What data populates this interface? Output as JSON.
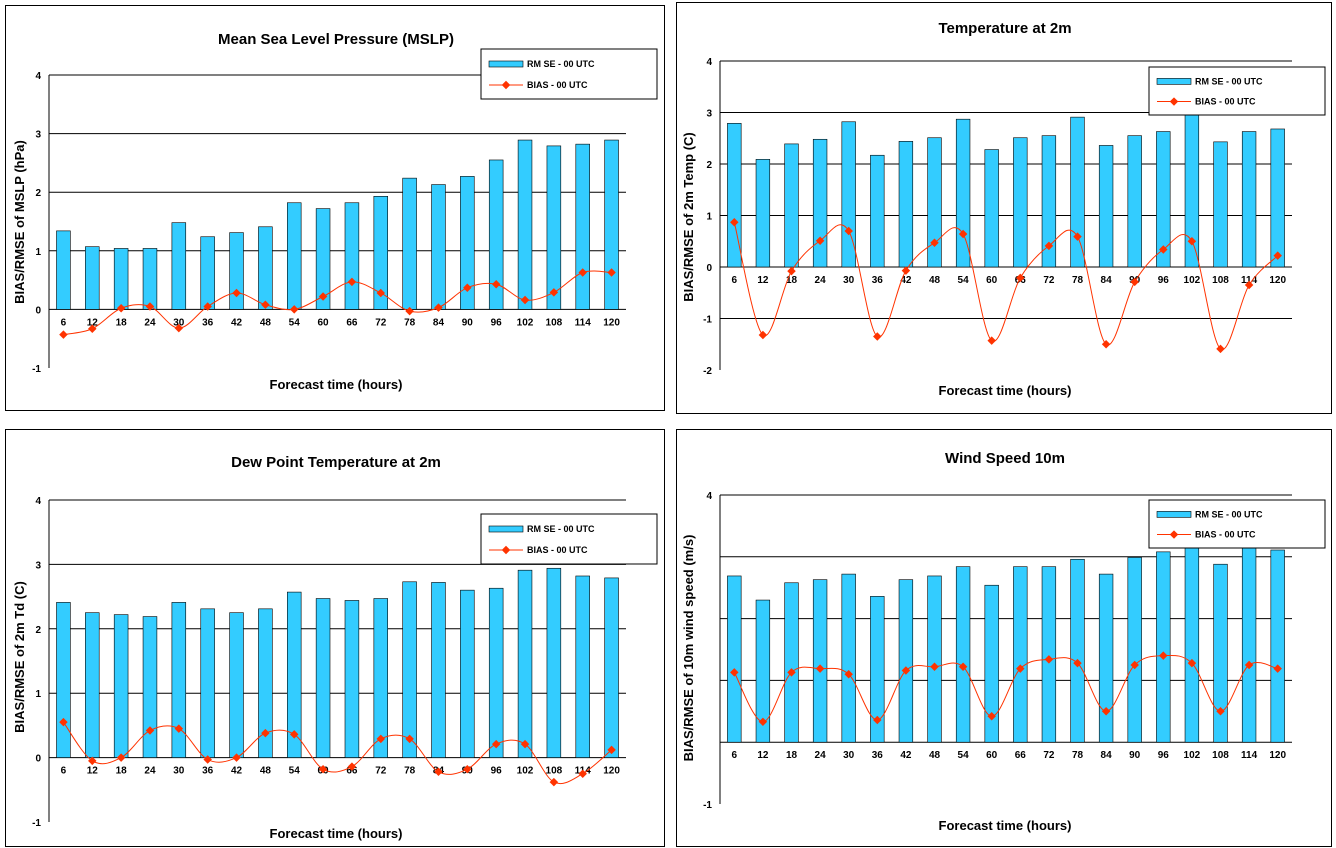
{
  "charts": [
    {
      "id": "mslp",
      "chart_data": {
        "type": "bar",
        "title": "Mean Sea Level Pressure (MSLP)",
        "xlabel": "Forecast time (hours)",
        "ylabel": "BIAS/RMSE of MSLP (hPa)",
        "ylim": [
          -1,
          4
        ],
        "yticks": [
          -1,
          0,
          1,
          2,
          3,
          4
        ],
        "grid": true,
        "legend_position": "top-right",
        "categories": [
          "6",
          "12",
          "18",
          "24",
          "30",
          "36",
          "42",
          "48",
          "54",
          "60",
          "66",
          "72",
          "78",
          "84",
          "90",
          "96",
          "102",
          "108",
          "114",
          "120"
        ],
        "series": [
          {
            "name": "RM SE - 00 UTC",
            "kind": "bar",
            "color": "#33CCFF",
            "values": [
              1.34,
              1.07,
              1.04,
              1.04,
              1.48,
              1.24,
              1.31,
              1.41,
              1.82,
              1.72,
              1.82,
              1.93,
              2.24,
              2.13,
              2.27,
              2.55,
              2.89,
              2.79,
              2.82,
              2.89
            ]
          },
          {
            "name": "BIAS - 00 UTC",
            "kind": "line",
            "color": "#FF3300",
            "values": [
              -0.43,
              -0.33,
              0.02,
              0.05,
              -0.32,
              0.05,
              0.28,
              0.08,
              0.0,
              0.22,
              0.47,
              0.28,
              -0.03,
              0.03,
              0.37,
              0.43,
              0.16,
              0.29,
              0.63,
              0.63
            ]
          }
        ]
      }
    },
    {
      "id": "t2m",
      "chart_data": {
        "type": "bar",
        "title": "Temperature at 2m",
        "xlabel": "Forecast time (hours)",
        "ylabel": "BIAS/RMSE of 2m Temp (C)",
        "ylim": [
          -2,
          4
        ],
        "yticks": [
          -2,
          -1,
          0,
          1,
          2,
          3,
          4
        ],
        "grid": true,
        "legend_position": "top-right",
        "categories": [
          "6",
          "12",
          "18",
          "24",
          "30",
          "36",
          "42",
          "48",
          "54",
          "60",
          "66",
          "72",
          "78",
          "84",
          "90",
          "96",
          "102",
          "108",
          "114",
          "120"
        ],
        "series": [
          {
            "name": "RM SE - 00 UTC",
            "kind": "bar",
            "color": "#33CCFF",
            "values": [
              2.79,
              2.09,
              2.39,
              2.48,
              2.82,
              2.17,
              2.44,
              2.51,
              2.87,
              2.28,
              2.51,
              2.55,
              2.91,
              2.36,
              2.55,
              2.63,
              3.03,
              2.43,
              2.63,
              2.68
            ]
          },
          {
            "name": "BIAS - 00 UTC",
            "kind": "line",
            "color": "#FF3300",
            "values": [
              0.87,
              -1.32,
              -0.08,
              0.51,
              0.7,
              -1.35,
              -0.07,
              0.47,
              0.64,
              -1.43,
              -0.21,
              0.41,
              0.59,
              -1.5,
              -0.29,
              0.34,
              0.5,
              -1.59,
              -0.35,
              0.22
            ]
          }
        ]
      }
    },
    {
      "id": "td2m",
      "chart_data": {
        "type": "bar",
        "title": "Dew Point Temperature at 2m",
        "xlabel": "Forecast time (hours)",
        "ylabel": "BIAS/RMSE of 2m Td (C)",
        "ylim": [
          -1,
          4
        ],
        "yticks": [
          -1,
          0,
          1,
          2,
          3,
          4
        ],
        "grid": true,
        "legend_position": "top-right",
        "categories": [
          "6",
          "12",
          "18",
          "24",
          "30",
          "36",
          "42",
          "48",
          "54",
          "60",
          "66",
          "72",
          "78",
          "84",
          "90",
          "96",
          "102",
          "108",
          "114",
          "120"
        ],
        "series": [
          {
            "name": "RM SE - 00 UTC",
            "kind": "bar",
            "color": "#33CCFF",
            "values": [
              2.41,
              2.25,
              2.22,
              2.19,
              2.41,
              2.31,
              2.25,
              2.31,
              2.57,
              2.47,
              2.44,
              2.47,
              2.73,
              2.72,
              2.6,
              2.63,
              2.91,
              2.94,
              2.82,
              2.79
            ]
          },
          {
            "name": "BIAS - 00 UTC",
            "kind": "line",
            "color": "#FF3300",
            "values": [
              0.55,
              -0.05,
              0.0,
              0.42,
              0.45,
              -0.03,
              0.0,
              0.38,
              0.36,
              -0.18,
              -0.14,
              0.29,
              0.29,
              -0.22,
              -0.18,
              0.21,
              0.21,
              -0.38,
              -0.25,
              0.12
            ]
          }
        ]
      }
    },
    {
      "id": "ws10m",
      "chart_data": {
        "type": "bar",
        "title": "Wind Speed 10m",
        "xlabel": "Forecast time (hours)",
        "ylabel": "BIAS/RMSE of 10m wind speed (m/s)",
        "ylim": [
          -1,
          4
        ],
        "yticks": [
          -1,
          0,
          1,
          2,
          3,
          4
        ],
        "ytick_labels_visible": [
          -1,
          4
        ],
        "grid": true,
        "legend_position": "top-right",
        "categories": [
          "6",
          "12",
          "18",
          "24",
          "30",
          "36",
          "42",
          "48",
          "54",
          "60",
          "66",
          "72",
          "78",
          "84",
          "90",
          "96",
          "102",
          "108",
          "114",
          "120"
        ],
        "series": [
          {
            "name": "RM SE - 00 UTC",
            "kind": "bar",
            "color": "#33CCFF",
            "values": [
              2.69,
              2.3,
              2.58,
              2.63,
              2.72,
              2.36,
              2.63,
              2.69,
              2.84,
              2.54,
              2.84,
              2.84,
              2.96,
              2.72,
              2.99,
              3.08,
              3.14,
              2.88,
              3.14,
              3.11
            ]
          },
          {
            "name": "BIAS - 00 UTC",
            "kind": "line",
            "color": "#FF3300",
            "values": [
              1.13,
              0.33,
              1.13,
              1.19,
              1.1,
              0.36,
              1.16,
              1.22,
              1.22,
              0.42,
              1.19,
              1.34,
              1.28,
              0.5,
              1.25,
              1.4,
              1.28,
              0.5,
              1.25,
              1.19
            ]
          }
        ]
      }
    }
  ]
}
